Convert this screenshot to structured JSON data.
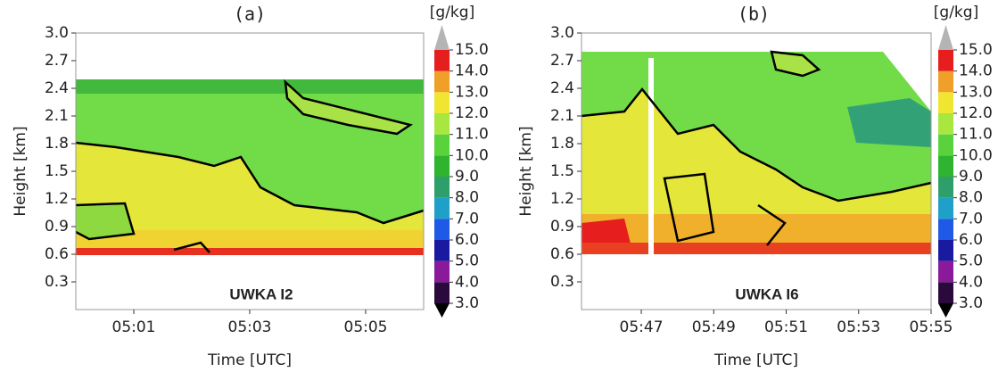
{
  "chart_data": [
    {
      "type": "contour",
      "title": "(a)",
      "xlabel": "Time [UTC]",
      "ylabel": "Height [km]",
      "xlim": [
        300,
        306
      ],
      "xticks": [
        {
          "value": 301,
          "label": "05:01"
        },
        {
          "value": 303,
          "label": "05:03"
        },
        {
          "value": 305,
          "label": "05:05"
        }
      ],
      "ylim": [
        0,
        3
      ],
      "yticks": [
        0.3,
        0.6,
        0.9,
        1.2,
        1.5,
        1.8,
        2.1,
        2.4,
        2.7,
        {
          "value": 3,
          "label": "3.0"
        }
      ],
      "annotation": "UWKA I2",
      "colorbar": {
        "label": "[g/kg]",
        "ticks": [
          {
            "value": 3,
            "label": "3.0"
          },
          {
            "value": 4,
            "label": "4.0"
          },
          {
            "value": 5,
            "label": "5.0"
          },
          {
            "value": 6,
            "label": "6.0"
          },
          {
            "value": 7,
            "label": "7.0"
          },
          {
            "value": 8,
            "label": "8.0"
          },
          {
            "value": 9,
            "label": "9.0"
          },
          {
            "value": 10,
            "label": "10.0"
          },
          {
            "value": 11,
            "label": "11.0"
          },
          {
            "value": 12,
            "label": "12.0"
          },
          {
            "value": 13,
            "label": "13.0"
          },
          {
            "value": 14,
            "label": "14.0"
          },
          {
            "value": 15,
            "label": "15.0"
          }
        ],
        "colors": [
          "#2a0a3c",
          "#8a1a9a",
          "#1a1aa0",
          "#1e5ae6",
          "#1ea0c8",
          "#2e9e6a",
          "#2eb42e",
          "#5ad23c",
          "#a8e640",
          "#f0e632",
          "#f0a028",
          "#e61e1e"
        ],
        "under": "#000000",
        "over": "#b4b4b4"
      }
    },
    {
      "type": "contour",
      "title": "(b)",
      "xlabel": "Time [UTC]",
      "ylabel": "Height [km]",
      "xlim": [
        345.35,
        355
      ],
      "xticks": [
        {
          "value": 347,
          "label": "05:47"
        },
        {
          "value": 349,
          "label": "05:49"
        },
        {
          "value": 351,
          "label": "05:51"
        },
        {
          "value": 353,
          "label": "05:53"
        },
        {
          "value": 355,
          "label": "05:55"
        }
      ],
      "ylim": [
        0,
        3
      ],
      "yticks": [
        0.3,
        0.6,
        0.9,
        1.2,
        1.5,
        1.8,
        2.1,
        2.4,
        2.7,
        {
          "value": 3,
          "label": "3.0"
        }
      ],
      "annotation": "UWKA I6",
      "colorbar": {
        "label": "[g/kg]",
        "ticks": [
          {
            "value": 3,
            "label": "3.0"
          },
          {
            "value": 4,
            "label": "4.0"
          },
          {
            "value": 5,
            "label": "5.0"
          },
          {
            "value": 6,
            "label": "6.0"
          },
          {
            "value": 7,
            "label": "7.0"
          },
          {
            "value": 8,
            "label": "8.0"
          },
          {
            "value": 9,
            "label": "9.0"
          },
          {
            "value": 10,
            "label": "10.0"
          },
          {
            "value": 11,
            "label": "11.0"
          },
          {
            "value": 12,
            "label": "12.0"
          },
          {
            "value": 13,
            "label": "13.0"
          },
          {
            "value": 14,
            "label": "14.0"
          },
          {
            "value": 15,
            "label": "15.0"
          }
        ],
        "colors": [
          "#2a0a3c",
          "#8a1a9a",
          "#1a1aa0",
          "#1e5ae6",
          "#1ea0c8",
          "#2e9e6a",
          "#2eb42e",
          "#5ad23c",
          "#a8e640",
          "#f0e632",
          "#f0a028",
          "#e61e1e"
        ],
        "under": "#000000",
        "over": "#b4b4b4"
      }
    }
  ]
}
